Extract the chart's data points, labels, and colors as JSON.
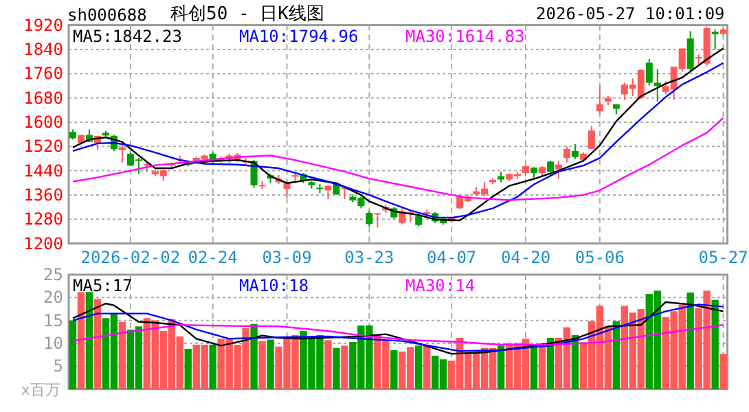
{
  "chart_data": [
    {
      "type": "candlestick",
      "title": "科创50 - 日K线图",
      "annotations": [
        "sh000688",
        "2026-05-27 10:01:09"
      ],
      "categories": [
        null,
        null,
        null,
        null,
        null,
        null,
        null,
        "2026-02-02",
        null,
        null,
        null,
        null,
        null,
        null,
        null,
        null,
        null,
        "02-24",
        null,
        null,
        null,
        null,
        null,
        null,
        null,
        null,
        "03-09",
        null,
        null,
        null,
        null,
        null,
        null,
        null,
        null,
        null,
        "03-23",
        null,
        null,
        null,
        null,
        null,
        null,
        null,
        null,
        null,
        "04-07",
        null,
        null,
        null,
        null,
        null,
        null,
        null,
        null,
        "04-20",
        null,
        null,
        null,
        null,
        null,
        null,
        null,
        null,
        "05-06",
        null,
        null,
        null,
        null,
        null,
        null,
        null,
        null,
        null,
        null,
        null,
        null,
        null,
        null,
        "05-27"
      ],
      "ohlc": [
        [
          1568,
          1576,
          1543,
          1547
        ],
        [
          1532,
          1558,
          1532,
          1558
        ],
        [
          1558,
          1576,
          1535,
          1535
        ],
        [
          1532,
          1555,
          1508,
          1555
        ],
        [
          1565,
          1571,
          1553,
          1556
        ],
        [
          1555,
          1558,
          1505,
          1511
        ],
        [
          1508,
          1532,
          1467,
          1517
        ],
        [
          1496,
          1500,
          1455,
          1457
        ],
        [
          1477,
          1482,
          1430,
          1473
        ],
        [
          1458,
          1467,
          1437,
          1462
        ],
        [
          1428,
          1444,
          1422,
          1438
        ],
        [
          1422,
          1444,
          1407,
          1441
        ],
        [
          1457,
          1467,
          1445,
          1463
        ],
        [
          1476,
          1490,
          1467,
          1479
        ],
        [
          1464,
          1467,
          1455,
          1459
        ],
        [
          1472,
          1487,
          1467,
          1482
        ],
        [
          1477,
          1493,
          1473,
          1490
        ],
        [
          1496,
          1500,
          1467,
          1472
        ],
        [
          1473,
          1487,
          1467,
          1481
        ],
        [
          1478,
          1497,
          1466,
          1490
        ],
        [
          1475,
          1498,
          1470,
          1493
        ],
        [
          1467,
          1482,
          1460,
          1473
        ],
        [
          1472,
          1475,
          1384,
          1392
        ],
        [
          1390,
          1405,
          1380,
          1393
        ],
        [
          1425,
          1429,
          1399,
          1414
        ],
        [
          1402,
          1426,
          1396,
          1414
        ],
        [
          1380,
          1407,
          1351,
          1399
        ],
        [
          1422,
          1432,
          1407,
          1425
        ],
        [
          1429,
          1432,
          1399,
          1407
        ],
        [
          1402,
          1405,
          1381,
          1392
        ],
        [
          1384,
          1396,
          1366,
          1382
        ],
        [
          1375,
          1393,
          1346,
          1390
        ],
        [
          1395,
          1399,
          1360,
          1362
        ],
        [
          1381,
          1390,
          1346,
          1384
        ],
        [
          1354,
          1361,
          1336,
          1342
        ],
        [
          1351,
          1354,
          1316,
          1323
        ],
        [
          1301,
          1308,
          1256,
          1264
        ],
        [
          1297,
          1300,
          1253,
          1300
        ],
        [
          1309,
          1327,
          1301,
          1321
        ],
        [
          1316,
          1321,
          1282,
          1286
        ],
        [
          1268,
          1316,
          1263,
          1306
        ],
        [
          1297,
          1309,
          1271,
          1303
        ],
        [
          1291,
          1297,
          1256,
          1261
        ],
        [
          1297,
          1312,
          1288,
          1303
        ],
        [
          1300,
          1303,
          1267,
          1273
        ],
        [
          1282,
          1288,
          1262,
          1267
        ],
        [
          1273,
          1288,
          1270,
          1285
        ],
        [
          1316,
          1361,
          1313,
          1357
        ],
        [
          1339,
          1361,
          1336,
          1354
        ],
        [
          1362,
          1387,
          1357,
          1372
        ],
        [
          1362,
          1402,
          1357,
          1381
        ],
        [
          1402,
          1414,
          1396,
          1410
        ],
        [
          1422,
          1437,
          1402,
          1411
        ],
        [
          1411,
          1431,
          1405,
          1429
        ],
        [
          1422,
          1437,
          1414,
          1429
        ],
        [
          1432,
          1459,
          1422,
          1455
        ],
        [
          1450,
          1452,
          1417,
          1432
        ],
        [
          1432,
          1455,
          1422,
          1452
        ],
        [
          1470,
          1473,
          1422,
          1437
        ],
        [
          1444,
          1473,
          1414,
          1460
        ],
        [
          1482,
          1520,
          1467,
          1512
        ],
        [
          1505,
          1528,
          1479,
          1485
        ],
        [
          1476,
          1500,
          1473,
          1496
        ],
        [
          1512,
          1588,
          1512,
          1573
        ],
        [
          1636,
          1720,
          1628,
          1659
        ],
        [
          1668,
          1686,
          1656,
          1680
        ],
        [
          1659,
          1659,
          1626,
          1644
        ],
        [
          1692,
          1730,
          1673,
          1724
        ],
        [
          1710,
          1744,
          1686,
          1724
        ],
        [
          1680,
          1775,
          1677,
          1772
        ],
        [
          1796,
          1808,
          1721,
          1730
        ],
        [
          1730,
          1775,
          1668,
          1719
        ],
        [
          1700,
          1734,
          1692,
          1719
        ],
        [
          1707,
          1783,
          1674,
          1783
        ],
        [
          1775,
          1843,
          1767,
          1843
        ],
        [
          1876,
          1900,
          1770,
          1775
        ],
        [
          1810,
          1823,
          1785,
          1815
        ],
        [
          1793,
          1915,
          1785,
          1910
        ],
        [
          1898,
          1906,
          1840,
          1890
        ],
        [
          1891,
          1910,
          1886,
          1906
        ]
      ],
      "colors": [
        "#00a000",
        "#ff5a5a",
        "#00a000",
        "#ff5a5a",
        "#00a000",
        "#00a000",
        "#ff5a5a",
        "#00a000",
        "#00a000",
        "#ff5a5a",
        "#ff5a5a",
        "#ff5a5a",
        "#ff5a5a",
        "#ff5a5a",
        "#00a000",
        "#ff5a5a",
        "#ff5a5a",
        "#00a000",
        "#ff5a5a",
        "#ff5a5a",
        "#ff5a5a",
        "#ff5a5a",
        "#00a000",
        "#ff5a5a",
        "#00a000",
        "#ff5a5a",
        "#ff5a5a",
        "#ff5a5a",
        "#00a000",
        "#00a000",
        "#00a000",
        "#ff5a5a",
        "#00a000",
        "#ff5a5a",
        "#00a000",
        "#00a000",
        "#00a000",
        "#ff5a5a",
        "#ff5a5a",
        "#00a000",
        "#ff5a5a",
        "#ff5a5a",
        "#00a000",
        "#ff5a5a",
        "#00a000",
        "#00a000",
        "#ff5a5a",
        "#ff5a5a",
        "#ff5a5a",
        "#ff5a5a",
        "#ff5a5a",
        "#ff5a5a",
        "#00a000",
        "#ff5a5a",
        "#ff5a5a",
        "#ff5a5a",
        "#00a000",
        "#ff5a5a",
        "#00a000",
        "#ff5a5a",
        "#ff5a5a",
        "#00a000",
        "#ff5a5a",
        "#ff5a5a",
        "#ff5a5a",
        "#ff5a5a",
        "#00a000",
        "#ff5a5a",
        "#ff5a5a",
        "#ff5a5a",
        "#00a000",
        "#00a000",
        "#ff5a5a",
        "#ff5a5a",
        "#ff5a5a",
        "#00a000",
        "#ff5a5a",
        "#ff5a5a",
        "#00a000",
        "#ff5a5a"
      ],
      "series": [
        {
          "type": "line",
          "name": "MA5:1842.23",
          "color": "#000000",
          "values": [
            1517,
            null,
            1543,
            null,
            1550,
            null,
            1535,
            null,
            1490,
            null,
            1448,
            null,
            1448,
            null,
            1464,
            null,
            null,
            1472,
            null,
            null,
            1475,
            null,
            1467,
            null,
            1422,
            null,
            1399,
            null,
            null,
            1411,
            null,
            null,
            1399,
            null,
            null,
            1360,
            1339,
            null,
            null,
            1306,
            null,
            null,
            1294,
            null,
            1279,
            null,
            null,
            1276,
            1294,
            null,
            null,
            1355,
            null,
            1390,
            null,
            null,
            1413,
            null,
            null,
            1440,
            null,
            null,
            1473,
            null,
            1523,
            null,
            1603,
            null,
            null,
            1686,
            null,
            null,
            1727,
            null,
            1747,
            null,
            null,
            1807,
            null,
            1843
          ]
        },
        {
          "type": "line",
          "name": "MA10:1794.96",
          "color": "#0000ff",
          "values": [
            1505,
            null,
            null,
            1530,
            null,
            1532,
            null,
            1523,
            null,
            null,
            1500,
            null,
            null,
            1475,
            null,
            null,
            1463,
            null,
            null,
            null,
            1460,
            null,
            null,
            null,
            null,
            1448,
            null,
            null,
            1425,
            null,
            null,
            1404,
            null,
            1387,
            null,
            null,
            1360,
            null,
            1339,
            null,
            null,
            1309,
            null,
            null,
            1286,
            null,
            1285,
            null,
            1294,
            null,
            null,
            1316,
            null,
            null,
            1354,
            null,
            1395,
            null,
            null,
            1437,
            null,
            null,
            1457,
            null,
            1482,
            null,
            1535,
            null,
            null,
            1611,
            null,
            null,
            1683,
            null,
            1724,
            null,
            null,
            1765,
            null,
            1795
          ]
        },
        {
          "type": "line",
          "name": "MA30:1614.83",
          "color": "#ff00ff",
          "values": [
            1404,
            null,
            null,
            1418,
            null,
            null,
            null,
            1440,
            null,
            null,
            1458,
            null,
            null,
            null,
            1468,
            null,
            null,
            null,
            null,
            null,
            1485,
            null,
            null,
            null,
            1490,
            null,
            null,
            1475,
            null,
            null,
            null,
            null,
            null,
            1437,
            null,
            null,
            1414,
            null,
            null,
            null,
            null,
            1387,
            null,
            null,
            null,
            null,
            1360,
            null,
            1351,
            null,
            null,
            null,
            null,
            1343,
            null,
            null,
            null,
            null,
            null,
            1351,
            null,
            null,
            1360,
            null,
            1375,
            null,
            null,
            1419,
            null,
            null,
            1460,
            null,
            null,
            null,
            1523,
            null,
            null,
            1565,
            null,
            1614
          ]
        }
      ],
      "ylim": [
        1200,
        1920
      ],
      "yticks": [
        1200,
        1280,
        1360,
        1440,
        1520,
        1600,
        1680,
        1760,
        1840,
        1920
      ],
      "grid": true,
      "legend": "top"
    },
    {
      "type": "bar",
      "ylabel": "x百万",
      "categories": [
        null,
        null,
        null,
        null,
        null,
        null,
        null,
        null,
        null,
        null,
        null,
        null,
        null,
        null,
        null,
        null,
        null,
        null,
        null,
        null,
        null,
        null,
        null,
        null,
        null,
        null,
        null,
        null,
        null,
        null,
        null,
        null,
        null,
        null,
        null,
        null,
        null,
        null,
        null,
        null,
        null,
        null,
        null,
        null,
        null,
        null,
        null,
        null,
        null,
        null,
        null,
        null,
        null,
        null,
        null,
        null,
        null,
        null,
        null,
        null,
        null,
        null,
        null,
        null,
        null,
        null,
        null,
        null,
        null,
        null,
        null,
        null,
        null,
        null,
        null,
        null,
        null,
        null,
        null,
        null
      ],
      "values": [
        15.0,
        21.2,
        21.2,
        19.7,
        15.5,
        16.5,
        14.7,
        13.0,
        13.7,
        15.5,
        15.0,
        12.7,
        15.3,
        11.5,
        8.8,
        9.7,
        9.7,
        9.7,
        11.0,
        11.0,
        9.7,
        13.3,
        14.2,
        10.5,
        10.8,
        9.3,
        11.5,
        11.8,
        12.7,
        11.5,
        11.8,
        10.7,
        9.0,
        9.5,
        10.3,
        13.9,
        13.9,
        12.0,
        10.7,
        8.5,
        8.2,
        9.2,
        9.5,
        9.7,
        7.3,
        6.5,
        6.2,
        11.2,
        7.7,
        8.0,
        9.0,
        9.0,
        9.5,
        10.0,
        10.0,
        11.0,
        9.7,
        10.0,
        11.2,
        11.2,
        13.5,
        11.8,
        10.2,
        14.8,
        18.2,
        13.7,
        14.8,
        18.2,
        16.7,
        17.5,
        20.8,
        21.5,
        15.7,
        17.0,
        18.5,
        21.1,
        17.7,
        21.5,
        19.5,
        7.7
      ],
      "colors": [
        "#00a000",
        "#ff5a5a",
        "#00a000",
        "#ff5a5a",
        "#00a000",
        "#00a000",
        "#ff5a5a",
        "#00a000",
        "#00a000",
        "#ff5a5a",
        "#ff5a5a",
        "#ff5a5a",
        "#ff5a5a",
        "#ff5a5a",
        "#00a000",
        "#ff5a5a",
        "#ff5a5a",
        "#00a000",
        "#ff5a5a",
        "#ff5a5a",
        "#ff5a5a",
        "#ff5a5a",
        "#00a000",
        "#ff5a5a",
        "#00a000",
        "#ff5a5a",
        "#ff5a5a",
        "#ff5a5a",
        "#00a000",
        "#00a000",
        "#00a000",
        "#ff5a5a",
        "#00a000",
        "#ff5a5a",
        "#00a000",
        "#00a000",
        "#00a000",
        "#ff5a5a",
        "#ff5a5a",
        "#00a000",
        "#ff5a5a",
        "#ff5a5a",
        "#00a000",
        "#ff5a5a",
        "#00a000",
        "#00a000",
        "#ff5a5a",
        "#ff5a5a",
        "#ff5a5a",
        "#ff5a5a",
        "#ff5a5a",
        "#ff5a5a",
        "#00a000",
        "#ff5a5a",
        "#ff5a5a",
        "#ff5a5a",
        "#00a000",
        "#ff5a5a",
        "#00a000",
        "#ff5a5a",
        "#ff5a5a",
        "#00a000",
        "#ff5a5a",
        "#ff5a5a",
        "#ff5a5a",
        "#ff5a5a",
        "#00a000",
        "#ff5a5a",
        "#ff5a5a",
        "#ff5a5a",
        "#00a000",
        "#00a000",
        "#ff5a5a",
        "#ff5a5a",
        "#ff5a5a",
        "#00a000",
        "#ff5a5a",
        "#ff5a5a",
        "#00a000",
        "#ff5a5a"
      ],
      "series": [
        {
          "type": "line",
          "name": "MA5:17",
          "color": "#000000",
          "values": [
            15.5,
            null,
            null,
            null,
            18.7,
            18.3,
            null,
            null,
            14.7,
            null,
            14.5,
            null,
            null,
            14,
            null,
            11,
            null,
            null,
            9.5,
            null,
            null,
            10.7,
            null,
            11.7,
            null,
            11.2,
            null,
            null,
            11,
            null,
            null,
            null,
            11.3,
            null,
            null,
            11.5,
            null,
            null,
            12,
            null,
            null,
            10.5,
            null,
            null,
            null,
            null,
            7.7,
            null,
            null,
            null,
            8,
            null,
            null,
            null,
            9,
            null,
            null,
            null,
            10,
            null,
            null,
            11,
            null,
            null,
            null,
            13.7,
            null,
            null,
            null,
            14,
            null,
            null,
            19,
            null,
            null,
            18.5,
            null,
            null,
            null,
            17
          ]
        },
        {
          "type": "line",
          "name": "MA10:18",
          "color": "#0000ff",
          "values": [
            15,
            null,
            null,
            16.5,
            null,
            null,
            null,
            null,
            null,
            16.5,
            null,
            null,
            15,
            null,
            null,
            13,
            null,
            null,
            null,
            11,
            null,
            null,
            null,
            null,
            null,
            11.3,
            null,
            null,
            null,
            null,
            null,
            11.5,
            null,
            null,
            null,
            11,
            null,
            null,
            null,
            null,
            10.5,
            null,
            null,
            null,
            null,
            null,
            null,
            8.3,
            null,
            null,
            null,
            null,
            8.5,
            null,
            null,
            null,
            null,
            null,
            9.5,
            null,
            null,
            null,
            11,
            null,
            null,
            null,
            null,
            14,
            null,
            null,
            null,
            null,
            17,
            null,
            null,
            null,
            18.5,
            null,
            null,
            18
          ]
        },
        {
          "type": "line",
          "name": "MA30:14",
          "color": "#ff00ff",
          "values": [
            10.5,
            null,
            null,
            null,
            null,
            null,
            12.3,
            null,
            null,
            null,
            null,
            null,
            null,
            14,
            null,
            null,
            null,
            null,
            null,
            13.8,
            null,
            null,
            null,
            null,
            null,
            13.7,
            null,
            null,
            null,
            null,
            null,
            12.7,
            null,
            null,
            null,
            11.7,
            null,
            null,
            null,
            null,
            null,
            10.7,
            null,
            null,
            null,
            null,
            null,
            10.3,
            null,
            null,
            null,
            null,
            9.7,
            null,
            null,
            null,
            null,
            null,
            9.7,
            null,
            null,
            null,
            null,
            null,
            10.2,
            null,
            null,
            null,
            null,
            11.5,
            null,
            null,
            null,
            null,
            null,
            13,
            null,
            null,
            null,
            14
          ]
        }
      ],
      "ylim": [
        0,
        25
      ],
      "yticks": [
        5,
        10,
        15,
        20,
        25
      ],
      "grid": true,
      "legend": "top",
      "tick_labels": "y"
    }
  ]
}
